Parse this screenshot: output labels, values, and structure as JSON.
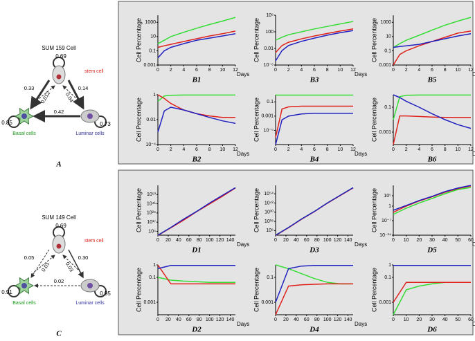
{
  "diagrams": [
    {
      "title": "SUM 159 Cell",
      "panel": "A",
      "stem_label": "stem cell",
      "basal_label": "Basal cells",
      "luminal_label": "Luminar cells",
      "loops": [
        "0.69",
        "0.85",
        "0.73"
      ],
      "edges": [
        "0.33",
        "0.14",
        "0.012",
        "0.04",
        "0.42"
      ]
    },
    {
      "title": "SUM 149 Cell",
      "panel": "C",
      "stem_label": "stem cell",
      "basal_label": "Basal cells",
      "luminal_label": "Luminar cells",
      "loops": [
        "0.69",
        "0.91",
        "0.95"
      ],
      "edges": [
        "0.05",
        "0.30",
        "0.01",
        "0.03",
        "0.02"
      ]
    }
  ],
  "chart_data": [
    {
      "type": "line",
      "title": "B1",
      "ylabel": "Cell Percentage",
      "xlabel": "Days",
      "log_y": true,
      "x": [
        0,
        1,
        2,
        4,
        6,
        8,
        10,
        12
      ],
      "xlim": [
        0,
        12
      ],
      "xticks": [
        0,
        2,
        4,
        6,
        8,
        10,
        12
      ],
      "ylim": [
        0.001,
        10000
      ],
      "yticks": [
        0.001,
        0.1,
        10,
        1000
      ],
      "series": [
        {
          "name": "green",
          "color": "#33dd33",
          "values": [
            1,
            3,
            10,
            40,
            150,
            500,
            1500,
            5000
          ]
        },
        {
          "name": "red",
          "color": "#e0201b",
          "values": [
            0.3,
            0.5,
            0.8,
            2,
            5,
            12,
            25,
            60
          ]
        },
        {
          "name": "blue",
          "color": "#2020c0",
          "values": [
            0.01,
            0.1,
            0.3,
            1,
            3,
            6,
            12,
            25
          ]
        }
      ]
    },
    {
      "type": "line",
      "title": "B3",
      "ylabel": "Cell Percentage",
      "xlabel": "Days",
      "log_y": true,
      "x": [
        0,
        1,
        2,
        4,
        6,
        8,
        10,
        12
      ],
      "xlim": [
        0,
        12
      ],
      "xticks": [
        0,
        2,
        4,
        6,
        8,
        10,
        12
      ],
      "ylim": [
        1e-06,
        1000000
      ],
      "yticks": [
        {
          "value": 1e-06,
          "label": "10⁻⁶"
        },
        0.01,
        100,
        {
          "value": 1000000,
          "label": "10⁶"
        }
      ],
      "series": [
        {
          "name": "green",
          "color": "#33dd33",
          "values": [
            1,
            5,
            20,
            100,
            500,
            2000,
            8000,
            30000
          ]
        },
        {
          "name": "red",
          "color": "#e0201b",
          "values": [
            0.001,
            0.05,
            0.3,
            2,
            10,
            40,
            150,
            500
          ]
        },
        {
          "name": "blue",
          "color": "#2020c0",
          "values": [
            1e-05,
            0.003,
            0.05,
            0.5,
            3,
            15,
            60,
            200
          ]
        }
      ]
    },
    {
      "type": "line",
      "title": "B5",
      "ylabel": "Cell Percentage",
      "xlabel": "Days",
      "log_y": true,
      "x": [
        0,
        1,
        2,
        4,
        6,
        8,
        10,
        12
      ],
      "xlim": [
        0,
        12
      ],
      "xticks": [
        0,
        2,
        4,
        6,
        8,
        10,
        12
      ],
      "ylim": [
        0.001,
        10000
      ],
      "yticks": [
        0.001,
        0.1,
        10,
        1000
      ],
      "series": [
        {
          "name": "green",
          "color": "#33dd33",
          "values": [
            0.3,
            1,
            3,
            15,
            80,
            400,
            1500,
            5000
          ]
        },
        {
          "name": "red",
          "color": "#e0201b",
          "values": [
            0.001,
            0.03,
            0.1,
            0.5,
            2,
            8,
            30,
            60
          ]
        },
        {
          "name": "blue",
          "color": "#2020c0",
          "values": [
            0.3,
            0.4,
            0.5,
            0.8,
            2,
            5,
            12,
            25
          ]
        }
      ]
    },
    {
      "type": "line",
      "title": "B2",
      "ylabel": "Cell Percentage",
      "xlabel": "Days",
      "log_y": true,
      "x": [
        0,
        1,
        2,
        4,
        6,
        8,
        10,
        12
      ],
      "xlim": [
        0,
        12
      ],
      "xticks": [
        0,
        2,
        4,
        6,
        8,
        10,
        12
      ],
      "ylim": [
        0.0001,
        1
      ],
      "yticks": [
        {
          "value": 0.0001,
          "label": "10⁻⁴"
        },
        0.01,
        1
      ],
      "series": [
        {
          "name": "green",
          "color": "#33dd33",
          "values": [
            0.3,
            0.8,
            0.9,
            0.95,
            0.95,
            0.95,
            0.95,
            0.95
          ]
        },
        {
          "name": "red",
          "color": "#e0201b",
          "values": [
            1,
            0.5,
            0.2,
            0.06,
            0.03,
            0.02,
            0.015,
            0.015
          ]
        },
        {
          "name": "blue",
          "color": "#2020c0",
          "values": [
            0.001,
            0.05,
            0.1,
            0.06,
            0.03,
            0.015,
            0.008,
            0.005
          ]
        }
      ]
    },
    {
      "type": "line",
      "title": "B4",
      "ylabel": "Cell Percentage",
      "xlabel": "Days",
      "log_y": true,
      "x": [
        0,
        1,
        2,
        4,
        6,
        8,
        10,
        12
      ],
      "xlim": [
        0,
        12
      ],
      "xticks": [
        0,
        2,
        4,
        6,
        8,
        10,
        12
      ],
      "ylim": [
        1e-07,
        1
      ],
      "yticks": [
        {
          "value": 1e-05,
          "label": "10⁻⁵"
        },
        0.001,
        0.1
      ],
      "series": [
        {
          "name": "green",
          "color": "#33dd33",
          "values": [
            0.9,
            0.9,
            0.9,
            0.9,
            0.9,
            0.9,
            0.9,
            0.9
          ]
        },
        {
          "name": "red",
          "color": "#e0201b",
          "values": [
            1e-06,
            0.01,
            0.02,
            0.025,
            0.025,
            0.025,
            0.025,
            0.025
          ]
        },
        {
          "name": "blue",
          "color": "#2020c0",
          "values": [
            1e-07,
            0.0003,
            0.001,
            0.002,
            0.0025,
            0.0025,
            0.0025,
            0.0025
          ]
        }
      ]
    },
    {
      "type": "line",
      "title": "B6",
      "ylabel": "Cell Percentage",
      "xlabel": "Days",
      "log_y": true,
      "x": [
        0,
        1,
        2,
        4,
        6,
        8,
        10,
        12
      ],
      "xlim": [
        0,
        12
      ],
      "xticks": [
        0,
        2,
        4,
        6,
        8,
        10,
        12
      ],
      "ylim": [
        0.0001,
        1
      ],
      "yticks": [
        0.001,
        0.1
      ],
      "series": [
        {
          "name": "green",
          "color": "#33dd33",
          "values": [
            0.01,
            0.7,
            0.9,
            0.95,
            0.95,
            0.95,
            0.95,
            0.95
          ]
        },
        {
          "name": "red",
          "color": "#e0201b",
          "values": [
            0.0001,
            0.02,
            0.02,
            0.018,
            0.016,
            0.015,
            0.015,
            0.015
          ]
        },
        {
          "name": "blue",
          "color": "#2020c0",
          "values": [
            1,
            0.6,
            0.3,
            0.1,
            0.03,
            0.01,
            0.004,
            0.002
          ]
        }
      ]
    },
    {
      "type": "line",
      "title": "D1",
      "ylabel": "Cell Percentage",
      "xlabel": "Days",
      "log_y": true,
      "x": [
        0,
        25,
        50,
        75,
        100,
        125,
        150
      ],
      "xlim": [
        0,
        150
      ],
      "xticks": [
        0,
        20,
        40,
        60,
        80,
        100,
        120,
        140
      ],
      "ylim": [
        1,
        1e+65
      ],
      "yticks": [
        {
          "value": 100000,
          "label": "10⁵"
        },
        {
          "value": 1e+17,
          "label": "10¹⁷"
        },
        {
          "value": 1e+29,
          "label": "10²⁹"
        },
        {
          "value": 1e+41,
          "label": "10⁴¹"
        },
        {
          "value": 1e+53,
          "label": "10⁵³"
        }
      ],
      "series": [
        {
          "name": "green",
          "color": "#33dd33",
          "values": [
            1,
            10000000000.0,
            1e+20,
            1e+31,
            1e+41,
            1e+51,
            1e+62
          ]
        },
        {
          "name": "red",
          "color": "#e0201b",
          "values": [
            0.5,
            5000000000.0,
            5e+19,
            5e+30,
            5e+40,
            5e+50,
            5e+61
          ]
        },
        {
          "name": "blue",
          "color": "#2020c0",
          "values": [
            0.8,
            10000000000.0,
            1e+21,
            1e+31,
            1e+42,
            1e+52,
            1e+62
          ]
        }
      ]
    },
    {
      "type": "line",
      "title": "D3",
      "ylabel": "Cell Percentage",
      "xlabel": "Days",
      "log_y": true,
      "x": [
        0,
        25,
        50,
        75,
        100,
        125,
        150
      ],
      "xlim": [
        0,
        150
      ],
      "xticks": [
        0,
        20,
        40,
        60,
        80,
        100,
        120,
        140
      ],
      "ylim": [
        1,
        1e+65
      ],
      "yticks": [
        {
          "value": 1000000,
          "label": "10⁶"
        },
        {
          "value": 1e+18,
          "label": "10¹⁸"
        },
        {
          "value": 1e+30,
          "label": "10³⁰"
        },
        {
          "value": 1e+42,
          "label": "10⁴²"
        },
        {
          "value": 1e+54,
          "label": "10⁵⁴"
        }
      ],
      "series": [
        {
          "name": "green",
          "color": "#33dd33",
          "values": [
            1,
            10000000000.0,
            1e+21,
            1e+31,
            1e+42,
            1e+52,
            1e+62
          ]
        },
        {
          "name": "red",
          "color": "#e0201b",
          "values": [
            0.5,
            5000000000.0,
            5e+20,
            5e+30,
            5e+41,
            5e+51,
            5e+61
          ]
        },
        {
          "name": "blue",
          "color": "#2020c0",
          "values": [
            0.8,
            10000000000.0,
            1e+21,
            1e+31,
            1e+42,
            1e+52,
            1e+62
          ]
        }
      ]
    },
    {
      "type": "line",
      "title": "D5",
      "ylabel": "Cell Percentage",
      "xlabel": "Days",
      "log_y": true,
      "x": [
        0,
        10,
        20,
        30,
        40,
        50,
        60
      ],
      "xlim": [
        0,
        60
      ],
      "xticks": [
        0,
        10,
        20,
        30,
        40,
        50,
        60
      ],
      "ylim": [
        1e-14,
        10000000000.0
      ],
      "yticks": [
        {
          "value": 1e-14,
          "label": "10⁻¹⁴"
        },
        {
          "value": 1e-07,
          "label": "10⁻⁷"
        },
        1,
        {
          "value": 100000,
          "label": "10⁵"
        }
      ],
      "series": [
        {
          "name": "green",
          "color": "#33dd33",
          "values": [
            0.0001,
            0.1,
            30,
            5000,
            1000000,
            100000000,
            1000000000
          ]
        },
        {
          "name": "red",
          "color": "#e0201b",
          "values": [
            0.001,
            1,
            300,
            30000,
            5000000,
            300000000,
            5000000000
          ]
        },
        {
          "name": "blue",
          "color": "#2020c0",
          "values": [
            0.01,
            2,
            500,
            50000,
            10000000,
            500000000,
            10000000000
          ]
        }
      ]
    },
    {
      "type": "line",
      "title": "D2",
      "ylabel": "Cell Percentage",
      "xlabel": "Days",
      "log_y": true,
      "x": [
        0,
        25,
        50,
        75,
        100,
        125,
        150
      ],
      "xlim": [
        0,
        150
      ],
      "xticks": [
        0,
        20,
        40,
        60,
        80,
        100,
        120,
        140
      ],
      "ylim": [
        0.0001,
        1
      ],
      "yticks": [
        0.001,
        0.1,
        1
      ],
      "series": [
        {
          "name": "green",
          "color": "#33dd33",
          "values": [
            0.1,
            0.06,
            0.05,
            0.045,
            0.04,
            0.04,
            0.04
          ]
        },
        {
          "name": "red",
          "color": "#e0201b",
          "values": [
            1,
            0.03,
            0.03,
            0.03,
            0.03,
            0.03,
            0.03
          ]
        },
        {
          "name": "blue",
          "color": "#2020c0",
          "values": [
            0.5,
            0.9,
            0.9,
            0.9,
            0.9,
            0.9,
            0.9
          ]
        }
      ]
    },
    {
      "type": "line",
      "title": "D4",
      "ylabel": "Cell Percentage",
      "xlabel": "Days",
      "log_y": true,
      "x": [
        0,
        25,
        50,
        75,
        100,
        125,
        150
      ],
      "xlim": [
        0,
        150
      ],
      "xticks": [
        0,
        20,
        40,
        60,
        80,
        100,
        120,
        140
      ],
      "ylim": [
        0.0001,
        1
      ],
      "yticks": [
        0.001,
        0.1
      ],
      "series": [
        {
          "name": "green",
          "color": "#33dd33",
          "values": [
            1,
            0.5,
            0.2,
            0.08,
            0.04,
            0.03,
            0.03
          ]
        },
        {
          "name": "red",
          "color": "#e0201b",
          "values": [
            0.0001,
            0.02,
            0.025,
            0.028,
            0.03,
            0.03,
            0.03
          ]
        },
        {
          "name": "blue",
          "color": "#2020c0",
          "values": [
            0.001,
            0.5,
            0.8,
            0.9,
            0.9,
            0.9,
            0.9
          ]
        }
      ]
    },
    {
      "type": "line",
      "title": "D6",
      "ylabel": "Cell Percentage",
      "xlabel": "Days",
      "log_y": true,
      "x": [
        0,
        10,
        20,
        30,
        40,
        50,
        60
      ],
      "xlim": [
        0,
        60
      ],
      "xticks": [
        0,
        10,
        20,
        30,
        40,
        50,
        60
      ],
      "ylim": [
        0.0001,
        1
      ],
      "yticks": [
        0.001,
        0.1,
        1
      ],
      "series": [
        {
          "name": "green",
          "color": "#33dd33",
          "values": [
            0.0001,
            0.01,
            0.02,
            0.03,
            0.04,
            0.04,
            0.04
          ]
        },
        {
          "name": "red",
          "color": "#e0201b",
          "values": [
            0.001,
            0.04,
            0.04,
            0.04,
            0.04,
            0.04,
            0.04
          ]
        },
        {
          "name": "blue",
          "color": "#2020c0",
          "values": [
            0.9,
            0.9,
            0.9,
            0.9,
            0.9,
            0.9,
            0.9
          ]
        }
      ]
    }
  ]
}
